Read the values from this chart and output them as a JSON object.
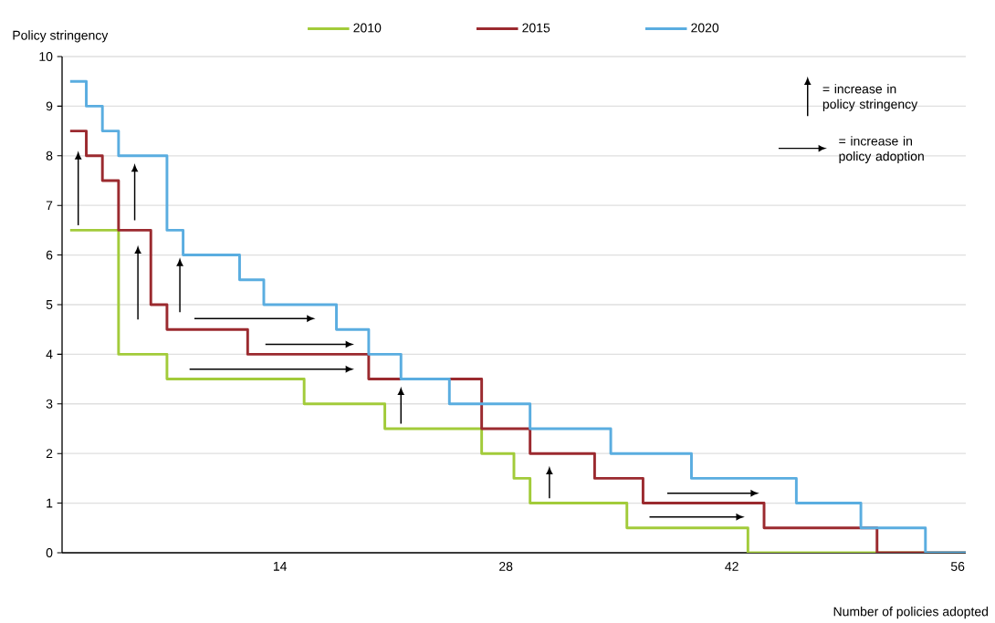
{
  "chart_data": {
    "type": "step",
    "xlabel": "Number of policies adopted",
    "ylabel": "Policy stringency",
    "xlim": [
      0.5,
      56.5
    ],
    "xticks": [
      14,
      28,
      42,
      56
    ],
    "ylim": [
      0,
      10
    ],
    "yticks": [
      0,
      1,
      2,
      3,
      4,
      5,
      6,
      7,
      8,
      9,
      10
    ],
    "grid": "y",
    "legend": "top",
    "marker": "none",
    "line_style": "solid",
    "annotations": [
      "= increase in policy stringency",
      "= increase in policy adoption"
    ],
    "series": [
      {
        "name": "2010",
        "color": "#a2cb3a",
        "x": [
          1,
          4,
          7,
          15.5,
          20.5,
          26.5,
          28.5,
          29.5,
          35.5,
          43,
          56.5
        ],
        "values": [
          6.5,
          4,
          3.5,
          3,
          2.5,
          2,
          1.5,
          1,
          0.5,
          0,
          0
        ]
      },
      {
        "name": "2015",
        "color": "#9b2a2f",
        "x": [
          1,
          2,
          3,
          4,
          6,
          7,
          12,
          19.5,
          26.5,
          29.5,
          33.5,
          36.5,
          44,
          51,
          56.5
        ],
        "values": [
          8.5,
          8,
          7.5,
          6.5,
          5,
          4.5,
          4,
          3.5,
          2.5,
          2,
          1.5,
          1,
          0.5,
          0,
          0
        ]
      },
      {
        "name": "2020",
        "color": "#5aade0",
        "x": [
          1,
          2,
          3,
          4,
          7,
          8,
          11.5,
          13,
          17.5,
          19.5,
          21.5,
          24.5,
          29.5,
          34.5,
          39.5,
          46,
          50,
          54,
          56.5
        ],
        "values": [
          9.5,
          9,
          8.5,
          8,
          6.5,
          6,
          5.5,
          5,
          4.5,
          4,
          3.5,
          3,
          2.5,
          2,
          1.5,
          1,
          0.5,
          0,
          0
        ]
      }
    ]
  }
}
